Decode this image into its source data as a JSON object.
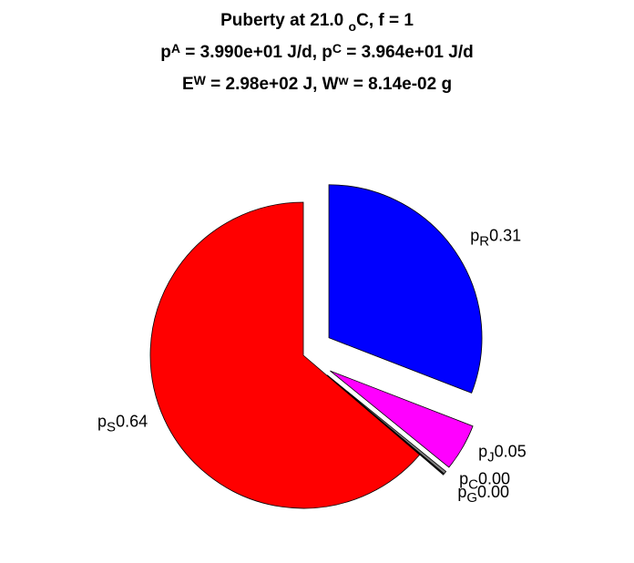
{
  "chart_data": {
    "type": "pie",
    "title_lines": [
      [
        {
          "text": "Puberty at 21.0 ",
          "script": "normal"
        },
        {
          "text": "o",
          "script": "sup"
        },
        {
          "text": "C, f = 1",
          "script": "normal"
        }
      ],
      [
        {
          "text": "p",
          "script": "normal"
        },
        {
          "text": "A",
          "script": "sub"
        },
        {
          "text": " = 3.990e+01 J/d,  p",
          "script": "normal"
        },
        {
          "text": "C",
          "script": "sub"
        },
        {
          "text": " = 3.964e+01 J/d",
          "script": "normal"
        }
      ],
      [
        {
          "text": "E",
          "script": "normal"
        },
        {
          "text": "W",
          "script": "sub"
        },
        {
          "text": " = 2.98e+02 J, W",
          "script": "normal"
        },
        {
          "text": "w",
          "script": "sub"
        },
        {
          "text": " = 8.14e-02 g",
          "script": "normal"
        }
      ]
    ],
    "slices": [
      {
        "name": "p",
        "sub": "R",
        "value": 0.31,
        "value_label": "0.31",
        "color": "#0000ff",
        "explode": true
      },
      {
        "name": "p",
        "sub": "J",
        "value": 0.05,
        "value_label": "0.05",
        "color": "#ff00ff",
        "explode": true
      },
      {
        "name": "p",
        "sub": "C",
        "value": 0.003,
        "value_label": "0.00",
        "color": "#808080",
        "explode": true
      },
      {
        "name": "p",
        "sub": "G",
        "value": 0.001,
        "value_label": "0.00",
        "color": "#404040",
        "explode": true
      },
      {
        "name": "p",
        "sub": "S",
        "value": 0.64,
        "value_label": "0.64",
        "color": "#ff0000",
        "explode": false
      }
    ],
    "start_angle": 90,
    "direction": "clockwise"
  }
}
